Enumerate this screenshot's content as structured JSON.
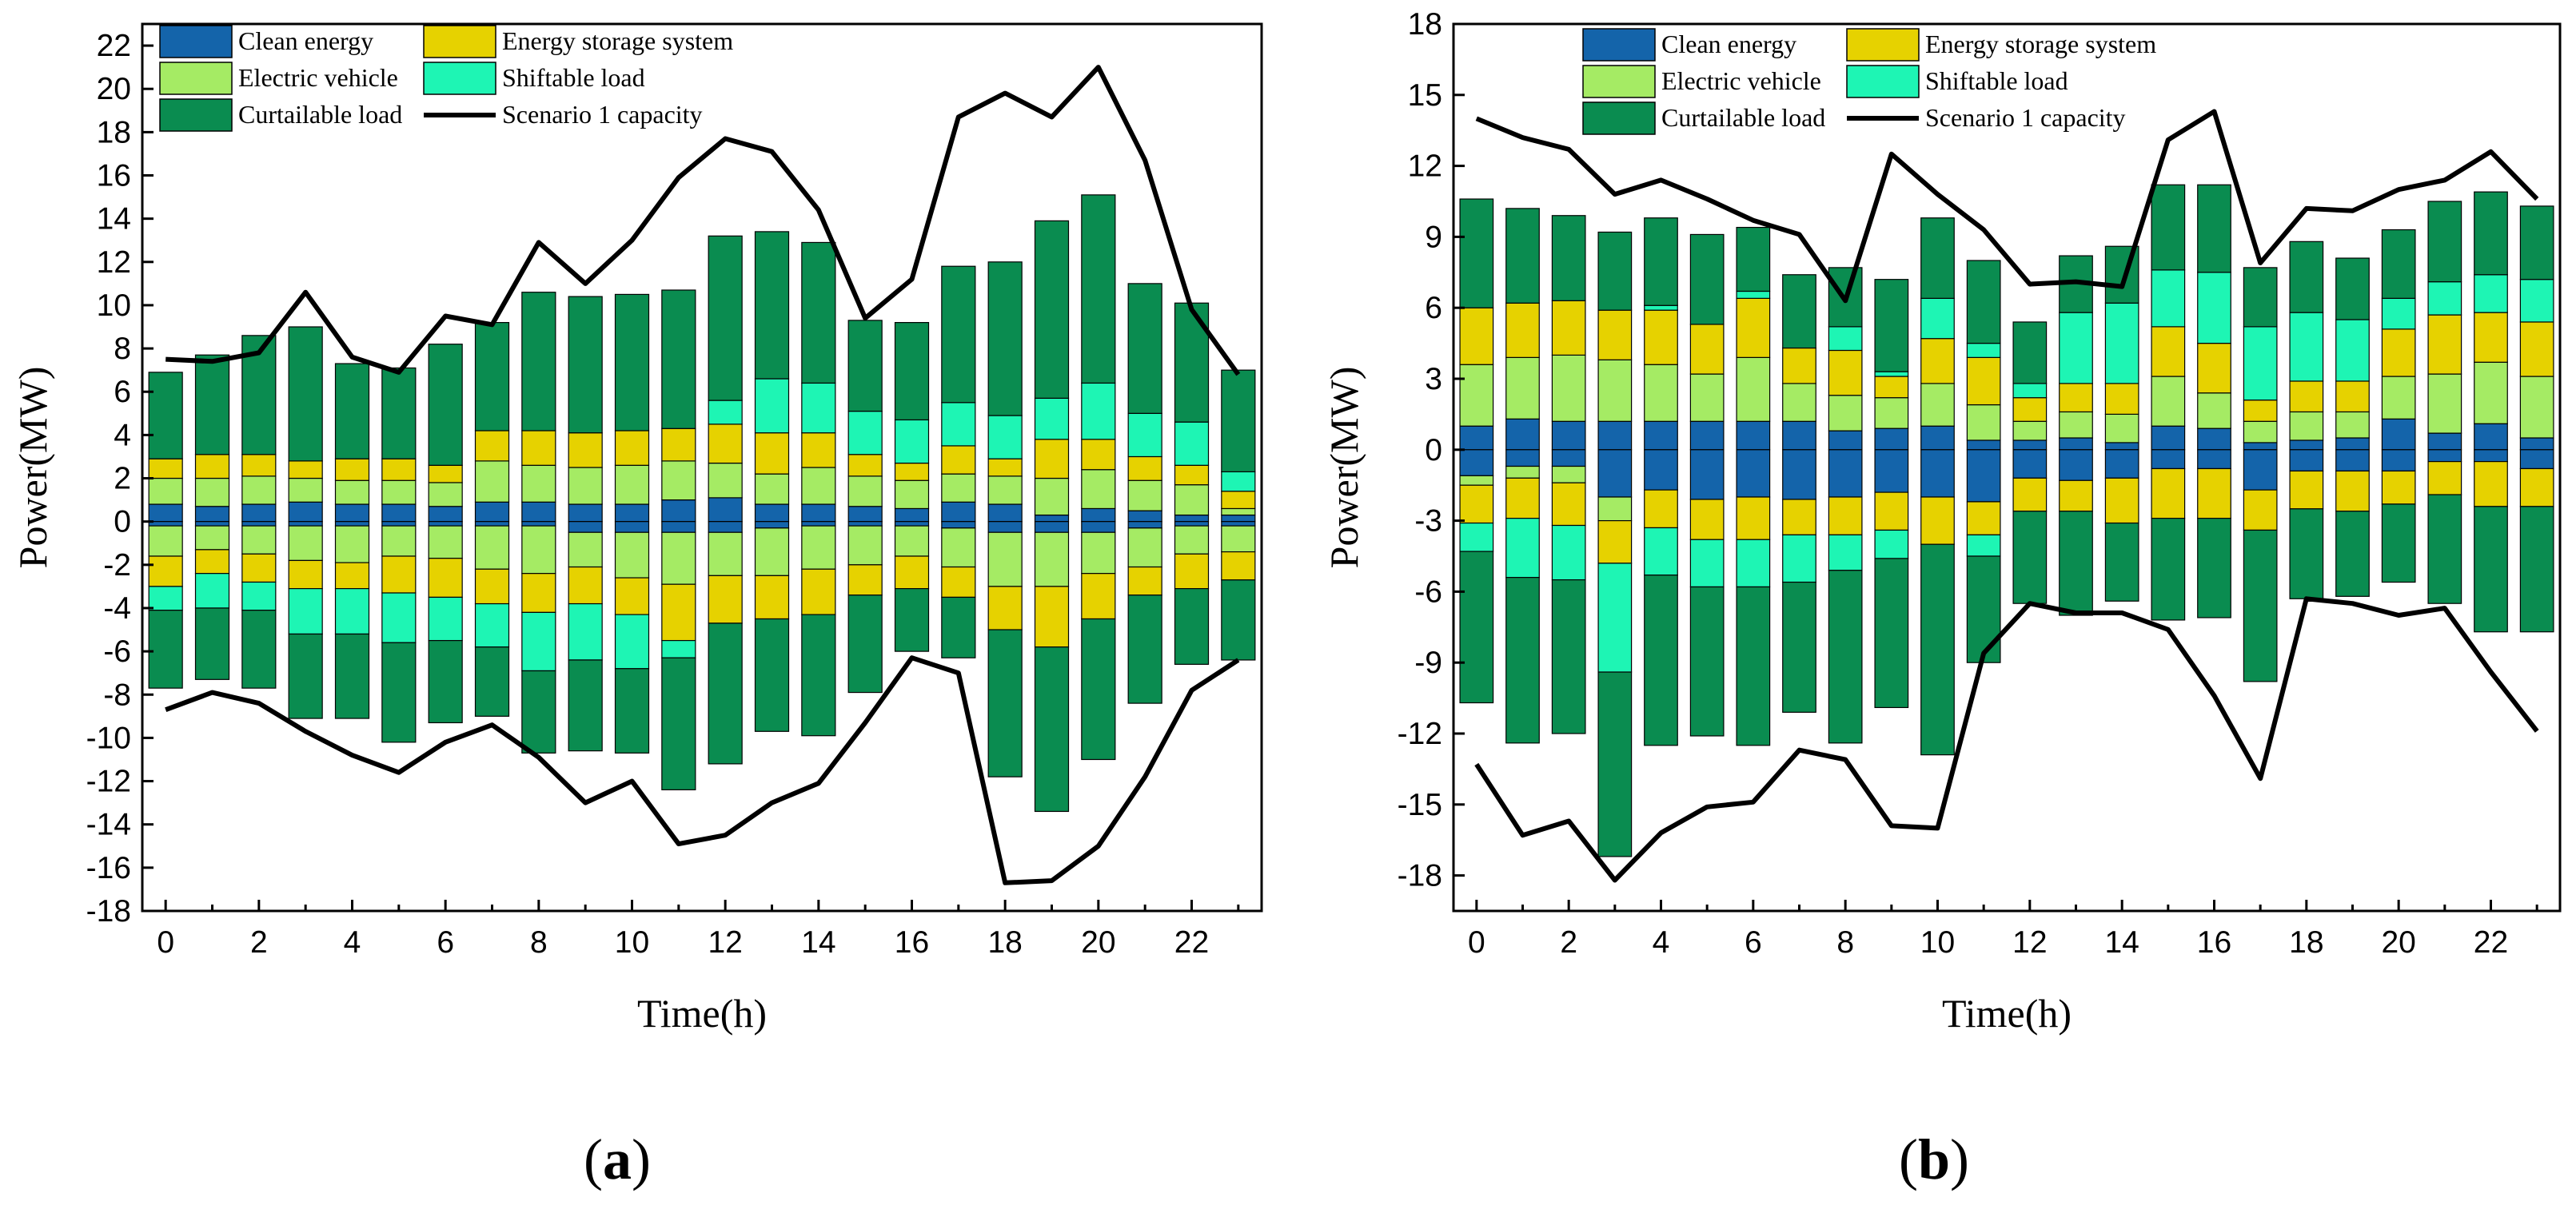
{
  "colors": {
    "clean": "#1464aa",
    "ess": "#e6d200",
    "ev": "#a5eb64",
    "shift": "#1ef5b4",
    "curt": "#0a8c50",
    "capacity": "#000000"
  },
  "panel_labels": [
    {
      "open": "(",
      "letter": "a",
      "close": ")"
    },
    {
      "open": "(",
      "letter": "b",
      "close": ")"
    }
  ],
  "chart_data": [
    {
      "id": "a",
      "type": "bar",
      "stacked": true,
      "xlabel": "Time(h)",
      "ylabel": "Power(MW)",
      "xlim": [
        -0.5,
        23.5
      ],
      "ylim": [
        -18,
        23
      ],
      "xticks": [
        0,
        2,
        4,
        6,
        8,
        10,
        12,
        14,
        16,
        18,
        20,
        22
      ],
      "yticks": [
        -18,
        -16,
        -14,
        -12,
        -10,
        -8,
        -6,
        -4,
        -2,
        0,
        2,
        4,
        6,
        8,
        10,
        12,
        14,
        16,
        18,
        20,
        22
      ],
      "x": [
        0,
        1,
        2,
        3,
        4,
        5,
        6,
        7,
        8,
        9,
        10,
        11,
        12,
        13,
        14,
        15,
        16,
        17,
        18,
        19,
        20,
        21,
        22,
        23
      ],
      "legend": [
        {
          "key": "clean",
          "label": "Clean energy"
        },
        {
          "key": "ess",
          "label": "Energy storage system"
        },
        {
          "key": "ev",
          "label": "Electric vehicle"
        },
        {
          "key": "shift",
          "label": "Shiftable load"
        },
        {
          "key": "curt",
          "label": "Curtailable load"
        },
        {
          "key": "capacity",
          "label": "Scenario 1 capacity",
          "line": true
        }
      ],
      "series": [
        {
          "key": "clean",
          "name": "Clean energy",
          "positive": [
            0.8,
            0.7,
            0.8,
            0.9,
            0.8,
            0.8,
            0.7,
            0.9,
            0.9,
            0.8,
            0.8,
            1.0,
            1.1,
            0.8,
            0.8,
            0.7,
            0.6,
            0.9,
            0.8,
            0.3,
            0.6,
            0.5,
            0.3,
            0.3
          ],
          "negative": [
            0.2,
            0.2,
            0.2,
            0.2,
            0.2,
            0.2,
            0.2,
            0.2,
            0.2,
            0.5,
            0.5,
            0.5,
            0.5,
            0.3,
            0.2,
            0.2,
            0.2,
            0.3,
            0.5,
            0.5,
            0.5,
            0.3,
            0.2,
            0.2
          ]
        },
        {
          "key": "ev",
          "name": "Electric vehicle",
          "positive": [
            1.2,
            1.3,
            1.3,
            1.1,
            1.1,
            1.1,
            1.1,
            1.9,
            1.7,
            1.7,
            1.8,
            1.8,
            1.6,
            1.4,
            1.7,
            1.4,
            1.3,
            1.3,
            1.3,
            1.7,
            1.8,
            1.4,
            1.4,
            0.3
          ],
          "negative": [
            1.4,
            1.1,
            1.3,
            1.6,
            1.7,
            1.4,
            1.5,
            2.0,
            2.2,
            1.6,
            2.1,
            2.4,
            2.0,
            2.2,
            2.0,
            1.8,
            1.4,
            1.8,
            2.5,
            2.5,
            1.9,
            1.8,
            1.3,
            1.2
          ]
        },
        {
          "key": "ess",
          "name": "Energy storage system",
          "positive": [
            0.9,
            1.1,
            1.0,
            0.8,
            1.0,
            1.0,
            0.8,
            1.4,
            1.6,
            1.6,
            1.6,
            1.5,
            1.8,
            1.9,
            1.6,
            1.0,
            0.8,
            1.3,
            0.8,
            1.8,
            1.4,
            1.1,
            0.9,
            0.8
          ],
          "negative": [
            1.4,
            1.1,
            1.3,
            1.3,
            1.2,
            1.7,
            1.8,
            1.6,
            1.8,
            1.7,
            1.7,
            2.6,
            2.2,
            2.0,
            2.1,
            1.4,
            1.5,
            1.4,
            2.0,
            2.8,
            2.1,
            1.3,
            1.6,
            1.3
          ]
        },
        {
          "key": "shift",
          "name": "Shiftable load",
          "positive": [
            0,
            0,
            0,
            0,
            0,
            0,
            0,
            0,
            0,
            0,
            0,
            0,
            1.1,
            2.5,
            2.3,
            2.0,
            2.0,
            2.0,
            2.0,
            1.9,
            2.6,
            2.0,
            2.0,
            0.9
          ],
          "negative": [
            1.1,
            1.6,
            1.3,
            2.1,
            2.1,
            2.3,
            2.0,
            2.0,
            2.7,
            2.6,
            2.5,
            0.8,
            0,
            0,
            0,
            0,
            0,
            0,
            0,
            0,
            0,
            0,
            0,
            0
          ]
        },
        {
          "key": "curt",
          "name": "Curtailable load",
          "positive": [
            4.0,
            4.6,
            5.5,
            6.2,
            4.4,
            4.2,
            5.6,
            5.0,
            6.4,
            6.3,
            6.3,
            6.4,
            7.6,
            6.8,
            6.5,
            4.2,
            4.5,
            6.3,
            7.1,
            8.2,
            8.7,
            6.0,
            5.5,
            4.7
          ],
          "negative": [
            3.6,
            3.3,
            3.6,
            3.9,
            3.9,
            4.6,
            3.8,
            3.2,
            3.8,
            4.2,
            3.9,
            6.1,
            6.5,
            5.2,
            5.6,
            4.5,
            2.9,
            2.8,
            6.8,
            7.6,
            6.5,
            5.0,
            3.5,
            3.7
          ]
        }
      ],
      "capacity": {
        "name": "Scenario 1 capacity",
        "upper": [
          7.5,
          7.4,
          7.8,
          10.6,
          7.6,
          6.9,
          9.5,
          9.1,
          12.9,
          11.0,
          13.0,
          15.9,
          17.7,
          17.1,
          14.4,
          9.4,
          11.2,
          18.7,
          19.8,
          18.7,
          21.0,
          16.7,
          9.8,
          6.8
        ],
        "lower": [
          -8.7,
          -7.9,
          -8.4,
          -9.7,
          -10.8,
          -11.6,
          -10.2,
          -9.4,
          -10.9,
          -13.0,
          -12.0,
          -14.9,
          -14.5,
          -13.0,
          -12.1,
          -9.3,
          -6.3,
          -7.0,
          -16.7,
          -16.6,
          -15.0,
          -11.8,
          -7.8,
          -6.4
        ]
      }
    },
    {
      "id": "b",
      "type": "bar",
      "stacked": true,
      "xlabel": "Time(h)",
      "ylabel": "Power(MW)",
      "xlim": [
        -0.5,
        23.5
      ],
      "ylim": [
        -19.5,
        18
      ],
      "xticks": [
        0,
        2,
        4,
        6,
        8,
        10,
        12,
        14,
        16,
        18,
        20,
        22
      ],
      "yticks": [
        -18,
        -15,
        -12,
        -9,
        -6,
        -3,
        0,
        3,
        6,
        9,
        12,
        15,
        18
      ],
      "x": [
        0,
        1,
        2,
        3,
        4,
        5,
        6,
        7,
        8,
        9,
        10,
        11,
        12,
        13,
        14,
        15,
        16,
        17,
        18,
        19,
        20,
        21,
        22,
        23
      ],
      "legend": [
        {
          "key": "clean",
          "label": "Clean energy"
        },
        {
          "key": "ess",
          "label": "Energy storage system"
        },
        {
          "key": "ev",
          "label": "Electric vehicle"
        },
        {
          "key": "shift",
          "label": "Shiftable load"
        },
        {
          "key": "curt",
          "label": "Curtailable load"
        },
        {
          "key": "capacity",
          "label": "Scenario 1 capacity",
          "line": true
        }
      ],
      "series": [
        {
          "key": "clean",
          "name": "Clean energy",
          "positive": [
            1.0,
            1.3,
            1.2,
            1.2,
            1.2,
            1.2,
            1.2,
            1.2,
            0.8,
            0.9,
            1.0,
            0.4,
            0.4,
            0.5,
            0.3,
            1.0,
            0.9,
            0.3,
            0.4,
            0.5,
            1.3,
            0.7,
            1.1,
            0.5
          ],
          "negative": [
            1.1,
            0.7,
            0.7,
            2.0,
            1.7,
            2.1,
            2.0,
            2.1,
            2.0,
            1.8,
            2.0,
            2.2,
            1.2,
            1.3,
            1.2,
            0.8,
            0.8,
            1.7,
            0.9,
            0.9,
            0.9,
            0.5,
            0.5,
            0.8
          ]
        },
        {
          "key": "ev",
          "name": "Electric vehicle",
          "positive": [
            2.6,
            2.6,
            2.8,
            2.6,
            2.4,
            2.0,
            2.7,
            1.6,
            1.5,
            1.3,
            1.8,
            1.5,
            0.8,
            1.1,
            1.2,
            2.1,
            1.5,
            0.9,
            1.2,
            1.1,
            1.8,
            2.5,
            2.6,
            2.6
          ],
          "negative": [
            0.4,
            0.5,
            0.7,
            1.0,
            0,
            0,
            0,
            0,
            0,
            0,
            0,
            0,
            0,
            0,
            0,
            0,
            0,
            0,
            0,
            0,
            0,
            0,
            0,
            0
          ]
        },
        {
          "key": "ess",
          "name": "Energy storage system",
          "positive": [
            2.4,
            2.3,
            2.3,
            2.1,
            2.3,
            2.1,
            2.5,
            1.5,
            1.9,
            0.9,
            1.9,
            2.0,
            1.0,
            1.2,
            1.3,
            2.1,
            2.1,
            0.9,
            1.3,
            1.3,
            2.0,
            2.5,
            2.1,
            2.3
          ],
          "negative": [
            1.6,
            1.7,
            1.8,
            1.8,
            1.6,
            1.7,
            1.8,
            1.5,
            1.6,
            1.6,
            2.0,
            1.4,
            1.4,
            1.3,
            1.9,
            2.1,
            2.1,
            1.7,
            1.6,
            1.7,
            1.4,
            1.4,
            1.9,
            1.6
          ]
        },
        {
          "key": "shift",
          "name": "Shiftable load",
          "positive": [
            0,
            0,
            0,
            0,
            0.2,
            0,
            0.3,
            0,
            1.0,
            0.2,
            1.7,
            0.6,
            0.6,
            3.0,
            3.4,
            2.4,
            3.0,
            3.1,
            2.9,
            2.6,
            1.3,
            1.4,
            1.6,
            1.8
          ],
          "negative": [
            1.2,
            2.5,
            2.3,
            4.6,
            2.0,
            2.0,
            2.0,
            2.0,
            1.5,
            1.2,
            0,
            0.9,
            0,
            0,
            0,
            0,
            0,
            0,
            0,
            0,
            0,
            0,
            0,
            0
          ]
        },
        {
          "key": "curt",
          "name": "Curtailable load",
          "positive": [
            4.6,
            4.0,
            3.6,
            3.3,
            3.7,
            3.8,
            2.7,
            3.1,
            2.5,
            3.9,
            3.4,
            3.5,
            2.6,
            2.4,
            2.4,
            3.6,
            3.7,
            2.5,
            3.0,
            2.6,
            2.9,
            3.4,
            3.5,
            3.1
          ],
          "negative": [
            6.4,
            7.0,
            6.5,
            7.8,
            7.2,
            6.3,
            6.7,
            5.5,
            7.3,
            6.3,
            8.9,
            4.5,
            3.9,
            4.4,
            3.3,
            4.3,
            4.2,
            6.4,
            3.8,
            3.6,
            3.3,
            4.6,
            5.3,
            5.3
          ]
        }
      ],
      "capacity": {
        "name": "Scenario 1 capacity",
        "upper": [
          14.0,
          13.2,
          12.7,
          10.8,
          11.4,
          10.6,
          9.7,
          9.1,
          6.3,
          12.5,
          10.8,
          9.3,
          7.0,
          7.1,
          6.9,
          13.1,
          14.3,
          7.9,
          10.2,
          10.1,
          11.0,
          11.4,
          12.6,
          10.6
        ],
        "lower": [
          -13.3,
          -16.3,
          -15.7,
          -18.2,
          -16.2,
          -15.1,
          -14.9,
          -12.7,
          -13.1,
          -15.9,
          -16.0,
          -8.6,
          -6.5,
          -6.9,
          -6.9,
          -7.6,
          -10.4,
          -13.9,
          -6.3,
          -6.5,
          -7.0,
          -6.7,
          -9.4,
          -11.9
        ]
      }
    }
  ]
}
